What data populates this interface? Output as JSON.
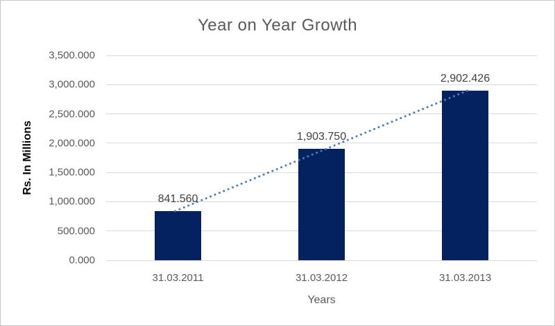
{
  "chart_data": {
    "type": "bar",
    "title": "Year on Year Growth",
    "xlabel": "Years",
    "ylabel": "Rs. In Millions",
    "categories": [
      "31.03.2011",
      "31.03.2012",
      "31.03.2013"
    ],
    "values": [
      841.56,
      1903.75,
      2902.426
    ],
    "value_labels": [
      "841.560",
      "1,903.750",
      "2,902.426"
    ],
    "ylim": [
      0,
      3500
    ],
    "ytick_step": 500,
    "ytick_labels": [
      "0.000",
      "500.000",
      "1,000.000",
      "1,500.000",
      "2,000.000",
      "2,500.000",
      "3,000.000",
      "3,500.000"
    ],
    "grid": true,
    "legend": "none",
    "trendline": {
      "type": "linear",
      "style": "dotted"
    },
    "colors": {
      "bar_fill": "#03225f",
      "trendline": "#4a7ebb",
      "gridline": "#d9d9d9",
      "axis_line": "#d9d9d9",
      "title_text": "#595959",
      "tick_text": "#595959",
      "data_label_text": "#404040",
      "x_axis_title_text": "#595959",
      "y_axis_title_text": "#000000",
      "frame_border": "#c6c6c6",
      "background": "#ffffff"
    }
  }
}
